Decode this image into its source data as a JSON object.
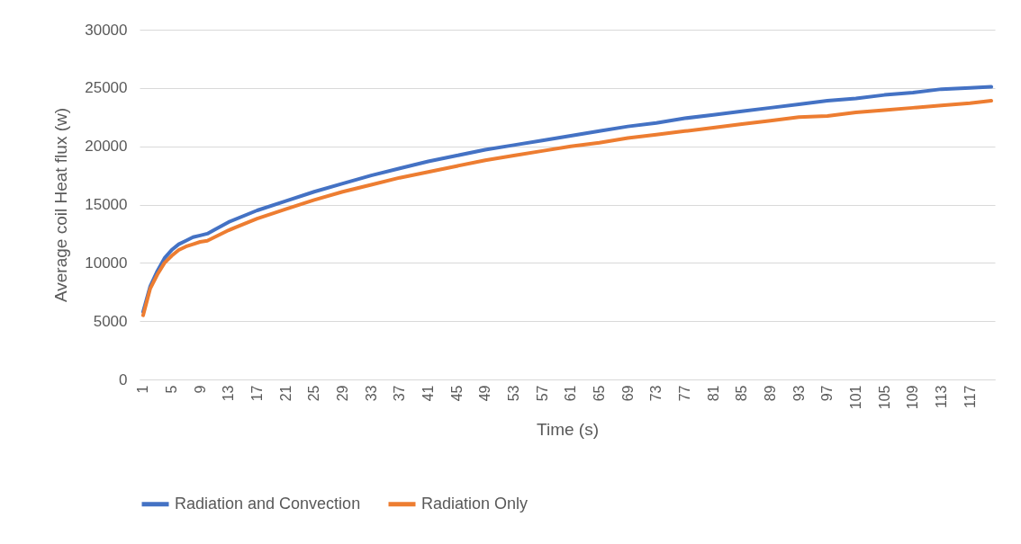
{
  "chart_data": {
    "type": "line",
    "xlabel": "Time (s)",
    "ylabel": "Average coil Heat flux (w)",
    "x": [
      1,
      2,
      3,
      4,
      5,
      6,
      7,
      8,
      9,
      10,
      13,
      17,
      21,
      25,
      29,
      33,
      37,
      41,
      45,
      49,
      53,
      57,
      61,
      65,
      69,
      73,
      77,
      81,
      85,
      89,
      93,
      97,
      101,
      105,
      109,
      113,
      117,
      120
    ],
    "series": [
      {
        "name": "Radiation and Convection",
        "color": "#4472c4",
        "values": [
          5800,
          8000,
          9300,
          10400,
          11100,
          11600,
          11900,
          12200,
          12350,
          12500,
          13500,
          14500,
          15300,
          16100,
          16800,
          17500,
          18100,
          18700,
          19200,
          19700,
          20100,
          20500,
          20900,
          21300,
          21700,
          22000,
          22400,
          22700,
          23000,
          23300,
          23600,
          23900,
          24100,
          24400,
          24600,
          24900,
          25000,
          25100
        ]
      },
      {
        "name": "Radiation Only",
        "color": "#ed7d31",
        "values": [
          5500,
          7800,
          9000,
          10000,
          10600,
          11100,
          11400,
          11600,
          11800,
          11900,
          12800,
          13800,
          14600,
          15400,
          16100,
          16700,
          17300,
          17800,
          18300,
          18800,
          19200,
          19600,
          20000,
          20300,
          20700,
          21000,
          21300,
          21600,
          21900,
          22200,
          22500,
          22600,
          22900,
          23100,
          23300,
          23500,
          23700,
          23900
        ]
      }
    ],
    "xlim": [
      0.5,
      120.5
    ],
    "xticks": [
      1,
      5,
      9,
      13,
      17,
      21,
      25,
      29,
      33,
      37,
      41,
      45,
      49,
      53,
      57,
      61,
      65,
      69,
      73,
      77,
      81,
      85,
      89,
      93,
      97,
      101,
      105,
      109,
      113,
      117
    ],
    "ylim": [
      0,
      30000
    ],
    "yticks": [
      0,
      5000,
      10000,
      15000,
      20000,
      25000,
      30000
    ],
    "grid": "y",
    "legend": "bottom",
    "marker": "none",
    "line_style": "solid"
  }
}
